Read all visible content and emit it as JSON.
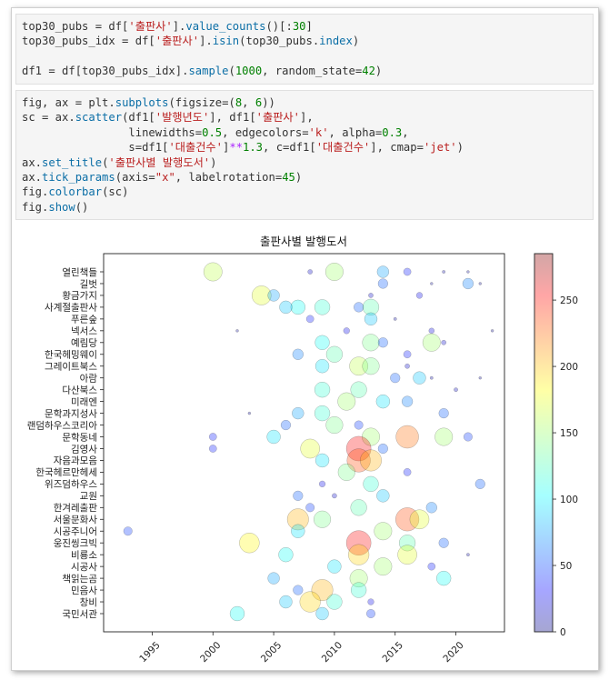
{
  "cells": [
    {
      "lines": [
        [
          [
            "top30_pubs = df[",
            ""
          ],
          [
            "'출판사'",
            "str"
          ],
          [
            "].",
            ""
          ],
          [
            "value_counts",
            "fn"
          ],
          [
            "()[:",
            ""
          ],
          [
            "30",
            "num"
          ],
          [
            "]",
            ""
          ]
        ],
        [
          [
            "top30_pubs_idx = df[",
            ""
          ],
          [
            "'출판사'",
            "str"
          ],
          [
            "].",
            ""
          ],
          [
            "isin",
            "fn"
          ],
          [
            "(top30_pubs.",
            ""
          ],
          [
            "index",
            "fn"
          ],
          [
            ")",
            ""
          ]
        ],
        [],
        [
          [
            "df1 = df[top30_pubs_idx].",
            ""
          ],
          [
            "sample",
            "fn"
          ],
          [
            "(",
            ""
          ],
          [
            "1000",
            "num"
          ],
          [
            ", random_state=",
            ""
          ],
          [
            "42",
            "num"
          ],
          [
            ")",
            ""
          ]
        ]
      ]
    },
    {
      "lines": [
        [
          [
            "fig, ax = plt.",
            ""
          ],
          [
            "subplots",
            "fn"
          ],
          [
            "(figsize=(",
            ""
          ],
          [
            "8",
            "num"
          ],
          [
            ", ",
            ""
          ],
          [
            "6",
            "num"
          ],
          [
            "))",
            ""
          ]
        ],
        [
          [
            "sc = ax.",
            ""
          ],
          [
            "scatter",
            "fn"
          ],
          [
            "(df1[",
            ""
          ],
          [
            "'발행년도'",
            "str"
          ],
          [
            "], df1[",
            ""
          ],
          [
            "'출판사'",
            "str"
          ],
          [
            "],",
            ""
          ]
        ],
        [
          [
            "                linewidths=",
            ""
          ],
          [
            "0.5",
            "num"
          ],
          [
            ", edgecolors=",
            ""
          ],
          [
            "'k'",
            "str"
          ],
          [
            ", alpha=",
            ""
          ],
          [
            "0.3",
            "num"
          ],
          [
            ",",
            ""
          ]
        ],
        [
          [
            "                s=df1[",
            ""
          ],
          [
            "'대출건수'",
            "str"
          ],
          [
            "]",
            ""
          ],
          [
            "**",
            "kw"
          ],
          [
            "1.3",
            "num"
          ],
          [
            ", c=df1[",
            ""
          ],
          [
            "'대출건수'",
            "str"
          ],
          [
            "], cmap=",
            ""
          ],
          [
            "'jet'",
            "str"
          ],
          [
            ")",
            ""
          ]
        ],
        [
          [
            "ax.",
            ""
          ],
          [
            "set_title",
            "fn"
          ],
          [
            "(",
            ""
          ],
          [
            "'출판사별 발행도서'",
            "str"
          ],
          [
            ")",
            ""
          ]
        ],
        [
          [
            "ax.",
            ""
          ],
          [
            "tick_params",
            "fn"
          ],
          [
            "(axis=",
            ""
          ],
          [
            "\"x\"",
            "str"
          ],
          [
            ", labelrotation=",
            ""
          ],
          [
            "45",
            "num"
          ],
          [
            ")",
            ""
          ]
        ],
        [
          [
            "fig.",
            ""
          ],
          [
            "colorbar",
            "fn"
          ],
          [
            "(sc)",
            ""
          ]
        ],
        [
          [
            "fig.",
            ""
          ],
          [
            "show",
            "fn"
          ],
          [
            "()",
            ""
          ]
        ]
      ]
    }
  ],
  "chart_data": {
    "type": "scatter",
    "title": "출판사별 발행도서",
    "xlabel": "",
    "ylabel": "",
    "xlim": [
      1991,
      2024
    ],
    "x_ticks": [
      1995,
      2000,
      2005,
      2010,
      2015,
      2020
    ],
    "x_tick_rotation": 45,
    "categories": [
      "국민서관",
      "창비",
      "민음사",
      "책읽는곰",
      "시공사",
      "비룡소",
      "웅진씽크빅",
      "시공주니어",
      "서울문화사",
      "한겨레출판",
      "교원",
      "위즈덤하우스",
      "한국헤르만헤세",
      "자음과모음",
      "김영사",
      "문학동네",
      "랜덤하우스코리아",
      "문학과지성사",
      "미래엔",
      "다산북스",
      "아람",
      "그레이트북스",
      "한국헤밍웨이",
      "예림당",
      "넥서스",
      "푸른숲",
      "사계절출판사",
      "황금가지",
      "길벗",
      "열린책들"
    ],
    "colormap": "jet",
    "alpha": 0.3,
    "edgecolor": "k",
    "colorbar": {
      "min": 0,
      "max": 285,
      "ticks": [
        0,
        50,
        100,
        150,
        200,
        250
      ]
    },
    "note_points": "1000 sampled points; size = 대출건수^1.3, color = 대출건수",
    "points": [
      [
        "열린책들",
        2000,
        160
      ],
      [
        "열린책들",
        2010,
        150
      ],
      [
        "열린책들",
        2014,
        80
      ],
      [
        "열린책들",
        2008,
        20
      ],
      [
        "열린책들",
        2019,
        10
      ],
      [
        "열린책들",
        2021,
        5
      ],
      [
        "열린책들",
        2016,
        40
      ],
      [
        "길벗",
        2014,
        60
      ],
      [
        "길벗",
        2021,
        70
      ],
      [
        "길벗",
        2018,
        5
      ],
      [
        "길벗",
        2022,
        3
      ],
      [
        "황금가지",
        2004,
        170
      ],
      [
        "황금가지",
        2005,
        80
      ],
      [
        "황금가지",
        2013,
        20
      ],
      [
        "황금가지",
        2017,
        30
      ],
      [
        "사계절출판사",
        2007,
        110
      ],
      [
        "사계절출판사",
        2009,
        120
      ],
      [
        "사계절출판사",
        2012,
        60
      ],
      [
        "사계절출판사",
        2013,
        130
      ],
      [
        "사계절출판사",
        2006,
        90
      ],
      [
        "푸른숲",
        2013,
        90
      ],
      [
        "푸른숲",
        2008,
        40
      ],
      [
        "푸른숲",
        2015,
        10
      ],
      [
        "넥서스",
        2011,
        30
      ],
      [
        "넥서스",
        2018,
        25
      ],
      [
        "넥서스",
        2002,
        5
      ],
      [
        "넥서스",
        2023,
        3
      ],
      [
        "예림당",
        2013,
        140
      ],
      [
        "예림당",
        2018,
        150
      ],
      [
        "예림당",
        2019,
        20
      ],
      [
        "예림당",
        2009,
        110
      ],
      [
        "예림당",
        2014,
        60
      ],
      [
        "한국헤밍웨이",
        2007,
        70
      ],
      [
        "한국헤밍웨이",
        2010,
        130
      ],
      [
        "한국헤밍웨이",
        2016,
        40
      ],
      [
        "그레이트북스",
        2012,
        160
      ],
      [
        "그레이트북스",
        2013,
        140
      ],
      [
        "그레이트북스",
        2009,
        100
      ],
      [
        "그레이트북스",
        2016,
        20
      ],
      [
        "아람",
        2015,
        60
      ],
      [
        "아람",
        2017,
        90
      ],
      [
        "아람",
        2018,
        10
      ],
      [
        "아람",
        2022,
        5
      ],
      [
        "다산북스",
        2012,
        130
      ],
      [
        "다산북스",
        2009,
        120
      ],
      [
        "다산북스",
        2020,
        15
      ],
      [
        "미래엔",
        2011,
        150
      ],
      [
        "미래엔",
        2014,
        100
      ],
      [
        "미래엔",
        2016,
        70
      ],
      [
        "문학과지성사",
        2003,
        5
      ],
      [
        "문학과지성사",
        2007,
        80
      ],
      [
        "문학과지성사",
        2009,
        120
      ],
      [
        "문학과지성사",
        2019,
        60
      ],
      [
        "랜덤하우스코리아",
        2006,
        60
      ],
      [
        "랜덤하우스코리아",
        2010,
        140
      ],
      [
        "랜덤하우스코리아",
        2012,
        50
      ],
      [
        "문학동네",
        2000,
        40
      ],
      [
        "문학동네",
        2005,
        100
      ],
      [
        "문학동네",
        2013,
        150
      ],
      [
        "문학동네",
        2016,
        220
      ],
      [
        "문학동네",
        2019,
        150
      ],
      [
        "문학동네",
        2021,
        50
      ],
      [
        "김영사",
        2000,
        40
      ],
      [
        "김영사",
        2008,
        170
      ],
      [
        "김영사",
        2012,
        250
      ],
      [
        "김영사",
        2014,
        60
      ],
      [
        "자음과모음",
        2012,
        230
      ],
      [
        "자음과모음",
        2013,
        200
      ],
      [
        "자음과모음",
        2009,
        100
      ],
      [
        "한국헤르만헤세",
        2011,
        140
      ],
      [
        "한국헤르만헤세",
        2016,
        40
      ],
      [
        "위즈덤하우스",
        2013,
        120
      ],
      [
        "위즈덤하우스",
        2009,
        30
      ],
      [
        "위즈덤하우스",
        2022,
        60
      ],
      [
        "교원",
        2007,
        60
      ],
      [
        "교원",
        2010,
        20
      ],
      [
        "교원",
        2014,
        90
      ],
      [
        "한겨레출판",
        2008,
        50
      ],
      [
        "한겨레출판",
        2012,
        130
      ],
      [
        "한겨레출판",
        2018,
        70
      ],
      [
        "서울문화사",
        2007,
        200
      ],
      [
        "서울문화사",
        2016,
        230
      ],
      [
        "서울문화사",
        2017,
        170
      ],
      [
        "서울문화사",
        2009,
        140
      ],
      [
        "시공주니어",
        1993,
        50
      ],
      [
        "시공주니어",
        2007,
        100
      ],
      [
        "시공주니어",
        2014,
        150
      ],
      [
        "웅진씽크빅",
        2003,
        180
      ],
      [
        "웅진씽크빅",
        2012,
        250
      ],
      [
        "웅진씽크빅",
        2016,
        130
      ],
      [
        "웅진씽크빅",
        2019,
        60
      ],
      [
        "비룡소",
        2012,
        190
      ],
      [
        "비룡소",
        2006,
        110
      ],
      [
        "비룡소",
        2016,
        170
      ],
      [
        "비룡소",
        2021,
        10
      ],
      [
        "시공사",
        2010,
        100
      ],
      [
        "시공사",
        2014,
        150
      ],
      [
        "시공사",
        2018,
        40
      ],
      [
        "책읽는곰",
        2005,
        80
      ],
      [
        "책읽는곰",
        2012,
        150
      ],
      [
        "책읽는곰",
        2019,
        110
      ],
      [
        "민음사",
        2009,
        200
      ],
      [
        "민음사",
        2007,
        60
      ],
      [
        "민음사",
        2012,
        120
      ],
      [
        "창비",
        2006,
        90
      ],
      [
        "창비",
        2008,
        190
      ],
      [
        "창비",
        2010,
        120
      ],
      [
        "창비",
        2013,
        30
      ],
      [
        "국민서관",
        2002,
        110
      ],
      [
        "국민서관",
        2009,
        90
      ],
      [
        "국민서관",
        2013,
        50
      ]
    ]
  }
}
